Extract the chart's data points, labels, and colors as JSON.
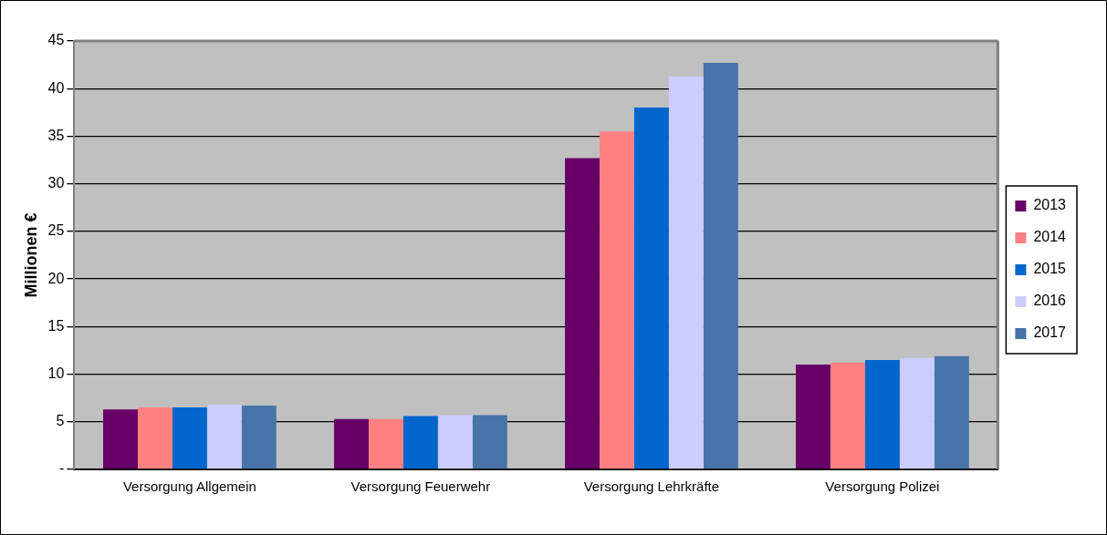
{
  "chart_data": {
    "type": "bar",
    "ylabel": "Millionen €",
    "categories": [
      "Versorgung Allgemein",
      "Versorgung Feuerwehr",
      "Versorgung Lehrkräfte",
      "Versorgung Polizei"
    ],
    "series": [
      {
        "name": "2013",
        "color": "#660066",
        "values": [
          6.3,
          5.3,
          32.7,
          11.0
        ]
      },
      {
        "name": "2014",
        "color": "#ff8080",
        "values": [
          6.5,
          5.3,
          35.5,
          11.2
        ]
      },
      {
        "name": "2015",
        "color": "#0066cc",
        "values": [
          6.5,
          5.6,
          38.0,
          11.5
        ]
      },
      {
        "name": "2016",
        "color": "#ccccff",
        "values": [
          6.8,
          5.7,
          41.3,
          11.7
        ]
      },
      {
        "name": "2017",
        "color": "#4774a8",
        "values": [
          6.7,
          5.7,
          42.7,
          11.9
        ]
      }
    ],
    "ylim": [
      0,
      45
    ],
    "yticks": [
      {
        "value": 0,
        "label": "-"
      },
      5,
      10,
      15,
      20,
      25,
      30,
      35,
      40,
      45
    ],
    "grid": "y",
    "legend": "right"
  }
}
